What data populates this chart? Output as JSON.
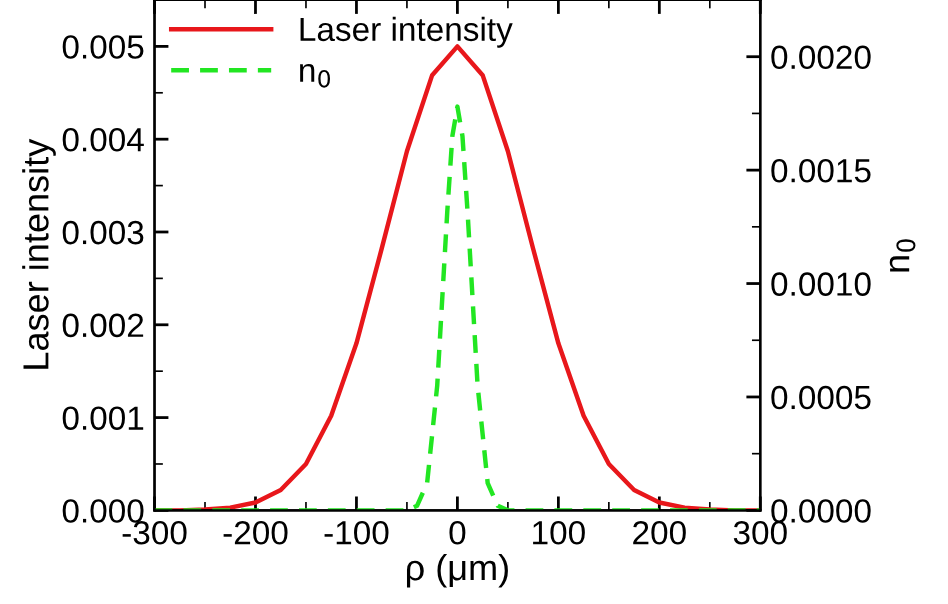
{
  "chart_data": {
    "type": "line",
    "xlabel": "ρ (μm)",
    "ylabel": "Laser intensity",
    "y2label": "n$_{0}$",
    "xlim": [
      -300,
      300
    ],
    "xticks": [
      -300,
      -200,
      -100,
      0,
      100,
      200,
      300
    ],
    "ylim": [
      0,
      0.0055
    ],
    "yticks": [
      {
        "value": 0,
        "label": "0.000"
      },
      {
        "value": 0.001,
        "label": "0.001"
      },
      {
        "value": 0.002,
        "label": "0.002"
      },
      {
        "value": 0.003,
        "label": "0.003"
      },
      {
        "value": 0.004,
        "label": "0.004"
      },
      {
        "value": 0.005,
        "label": "0.005"
      }
    ],
    "y2lim": [
      0,
      0.00225
    ],
    "y2ticks": [
      {
        "value": 0,
        "label": "0.0000"
      },
      {
        "value": 0.0005,
        "label": "0.0005"
      },
      {
        "value": 0.001,
        "label": "0.0010"
      },
      {
        "value": 0.0015,
        "label": "0.0015"
      },
      {
        "value": 0.002,
        "label": "0.0020"
      }
    ],
    "legend": "top left",
    "grid": false,
    "series": [
      {
        "name": "Laser intensity",
        "color": "#e8171b",
        "line_style": "solid",
        "x": [
          -300,
          -275,
          -250,
          -225,
          -200,
          -175,
          -150,
          -125,
          -100,
          -75,
          -50,
          -25,
          0,
          25,
          50,
          75,
          100,
          125,
          150,
          175,
          200,
          225,
          250,
          275,
          300
        ],
        "values": [
          0,
          0,
          1e-05,
          3e-05,
          8.5e-05,
          0.00022,
          0.0005,
          0.00102,
          0.0018,
          0.00282,
          0.00387,
          0.00469,
          0.005,
          0.00469,
          0.00387,
          0.00282,
          0.0018,
          0.00102,
          0.0005,
          0.00022,
          8.5e-05,
          3e-05,
          1e-05,
          0,
          0
        ]
      },
      {
        "name": "n$_{0}$",
        "color": "#22e622",
        "line_style": "dashed",
        "axis": "y2",
        "x": [
          -300,
          -50,
          -40,
          -30,
          -20,
          -10,
          -5,
          0,
          5,
          10,
          20,
          30,
          40,
          50,
          300
        ],
        "values": [
          0,
          0,
          2e-05,
          0.00012,
          0.00055,
          0.00132,
          0.00165,
          0.00178,
          0.00165,
          0.00132,
          0.00055,
          0.00012,
          2e-05,
          0,
          0
        ]
      }
    ]
  }
}
